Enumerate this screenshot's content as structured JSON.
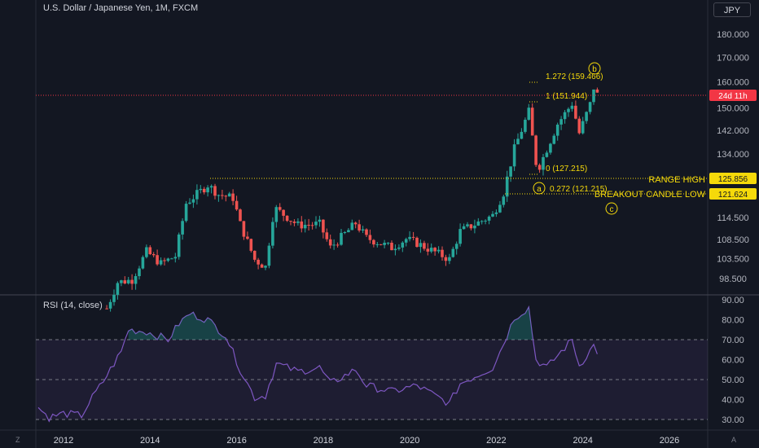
{
  "header": {
    "symbol_title": "U.S. Dollar / Japanese Yen, 1M, FXCM",
    "currency_label": "JPY"
  },
  "rsi_panel": {
    "title": "RSI (14, close)",
    "ticks": [
      "90.00",
      "80.00",
      "70.00",
      "60.00",
      "50.00",
      "40.00",
      "30.00"
    ],
    "upper_band": 70,
    "middle_band": 50,
    "lower_band": 30
  },
  "corners": {
    "left": "Z",
    "right": "A"
  },
  "price_axis": {
    "ticks": [
      "180.000",
      "170.000",
      "160.000",
      "150.000",
      "142.000",
      "134.000",
      "121.624",
      "114.500",
      "108.500",
      "103.500",
      "98.500"
    ]
  },
  "time_axis": {
    "labels": [
      "2012",
      "2014",
      "2016",
      "2018",
      "2020",
      "2022",
      "2024",
      "2026"
    ]
  },
  "annotations": {
    "fib_1272": "1.272 (159.466)",
    "fib_1": "1 (151.944)",
    "fib_0": "0 (127.215)",
    "fib_0272": "0.272 (121.215)",
    "wave_a": "a",
    "wave_b": "b",
    "wave_c": "c",
    "range_high": "RANGE HIGH",
    "breakout_low": "BREAKOUT CANDLE LOW"
  },
  "price_labels": {
    "countdown": "24d 11h",
    "range_high_value": "125.856",
    "breakout_low_value": "121.624"
  },
  "colors": {
    "background": "#131722",
    "up": "#26a69a",
    "down": "#ef5350",
    "rsi_line": "#7e57c2",
    "annotation": "#f5d90a",
    "current_price_line": "#f23645"
  },
  "chart_data": {
    "type": "candlestick",
    "title": "U.S. Dollar / Japanese Yen, 1M, FXCM",
    "x_range": [
      "2012-01",
      "2026-12"
    ],
    "y_range": [
      95,
      190
    ],
    "y_scale": "log",
    "key_levels": {
      "range_high": 125.856,
      "breakout_candle_low": 121.624,
      "current": 155.1
    },
    "fib_levels": {
      "0": 127.215,
      "0.272": 121.215,
      "1": 151.944,
      "1.272": 159.466
    },
    "price_path": [
      {
        "x": "2013-01",
        "close": 91.5
      },
      {
        "x": "2013-04",
        "close": 97.6
      },
      {
        "x": "2013-08",
        "close": 98.2
      },
      {
        "x": "2013-12",
        "close": 105.3
      },
      {
        "x": "2014-04",
        "close": 102.2
      },
      {
        "x": "2014-08",
        "close": 104.1
      },
      {
        "x": "2014-11",
        "close": 118.6
      },
      {
        "x": "2015-05",
        "close": 124.1
      },
      {
        "x": "2015-08",
        "close": 121.2
      },
      {
        "x": "2015-12",
        "close": 120.2
      },
      {
        "x": "2016-02",
        "close": 112.7
      },
      {
        "x": "2016-06",
        "close": 103.2
      },
      {
        "x": "2016-09",
        "close": 101.4
      },
      {
        "x": "2016-11",
        "close": 114.5
      },
      {
        "x": "2016-12",
        "close": 116.9
      },
      {
        "x": "2017-06",
        "close": 112.4
      },
      {
        "x": "2017-09",
        "close": 112.5
      },
      {
        "x": "2017-12",
        "close": 112.7
      },
      {
        "x": "2018-03",
        "close": 106.3
      },
      {
        "x": "2018-10",
        "close": 112.9
      },
      {
        "x": "2019-01",
        "close": 108.9
      },
      {
        "x": "2019-08",
        "close": 106.3
      },
      {
        "x": "2019-12",
        "close": 108.6
      },
      {
        "x": "2020-03",
        "close": 107.5
      },
      {
        "x": "2020-12",
        "close": 103.3
      },
      {
        "x": "2021-03",
        "close": 110.7
      },
      {
        "x": "2021-12",
        "close": 115.1
      },
      {
        "x": "2022-03",
        "close": 121.7
      },
      {
        "x": "2022-06",
        "close": 135.7
      },
      {
        "x": "2022-10",
        "close": 148.7
      },
      {
        "x": "2022-12",
        "close": 131.1
      },
      {
        "x": "2023-01",
        "close": 130.1
      },
      {
        "x": "2023-06",
        "close": 144.3
      },
      {
        "x": "2023-10",
        "close": 151.7
      },
      {
        "x": "2023-12",
        "close": 141.0
      },
      {
        "x": "2024-03",
        "close": 151.4
      },
      {
        "x": "2024-04",
        "close": 157.8
      },
      {
        "x": "2024-05",
        "close": 155.1
      }
    ],
    "rsi_path": [
      {
        "x": "2011-06",
        "y": 36
      },
      {
        "x": "2011-09",
        "y": 31
      },
      {
        "x": "2012-01",
        "y": 33
      },
      {
        "x": "2012-06",
        "y": 32
      },
      {
        "x": "2012-09",
        "y": 41
      },
      {
        "x": "2012-12",
        "y": 49
      },
      {
        "x": "2013-05",
        "y": 64
      },
      {
        "x": "2013-07",
        "y": 75
      },
      {
        "x": "2013-12",
        "y": 74
      },
      {
        "x": "2014-06",
        "y": 70
      },
      {
        "x": "2014-09",
        "y": 78
      },
      {
        "x": "2014-12",
        "y": 83
      },
      {
        "x": "2015-05",
        "y": 80
      },
      {
        "x": "2015-10",
        "y": 72
      },
      {
        "x": "2016-02",
        "y": 55
      },
      {
        "x": "2016-06",
        "y": 41
      },
      {
        "x": "2016-09",
        "y": 42
      },
      {
        "x": "2016-12",
        "y": 58
      },
      {
        "x": "2017-06",
        "y": 54
      },
      {
        "x": "2017-12",
        "y": 56
      },
      {
        "x": "2018-03",
        "y": 48
      },
      {
        "x": "2018-10",
        "y": 55
      },
      {
        "x": "2019-01",
        "y": 47
      },
      {
        "x": "2019-08",
        "y": 44
      },
      {
        "x": "2020-03",
        "y": 47
      },
      {
        "x": "2020-12",
        "y": 38
      },
      {
        "x": "2021-03",
        "y": 48
      },
      {
        "x": "2021-12",
        "y": 56
      },
      {
        "x": "2022-03",
        "y": 68
      },
      {
        "x": "2022-06",
        "y": 81
      },
      {
        "x": "2022-10",
        "y": 86
      },
      {
        "x": "2022-12",
        "y": 60
      },
      {
        "x": "2023-03",
        "y": 56
      },
      {
        "x": "2023-10",
        "y": 70
      },
      {
        "x": "2023-12",
        "y": 57
      },
      {
        "x": "2024-04",
        "y": 67
      },
      {
        "x": "2024-05",
        "y": 64
      }
    ]
  }
}
